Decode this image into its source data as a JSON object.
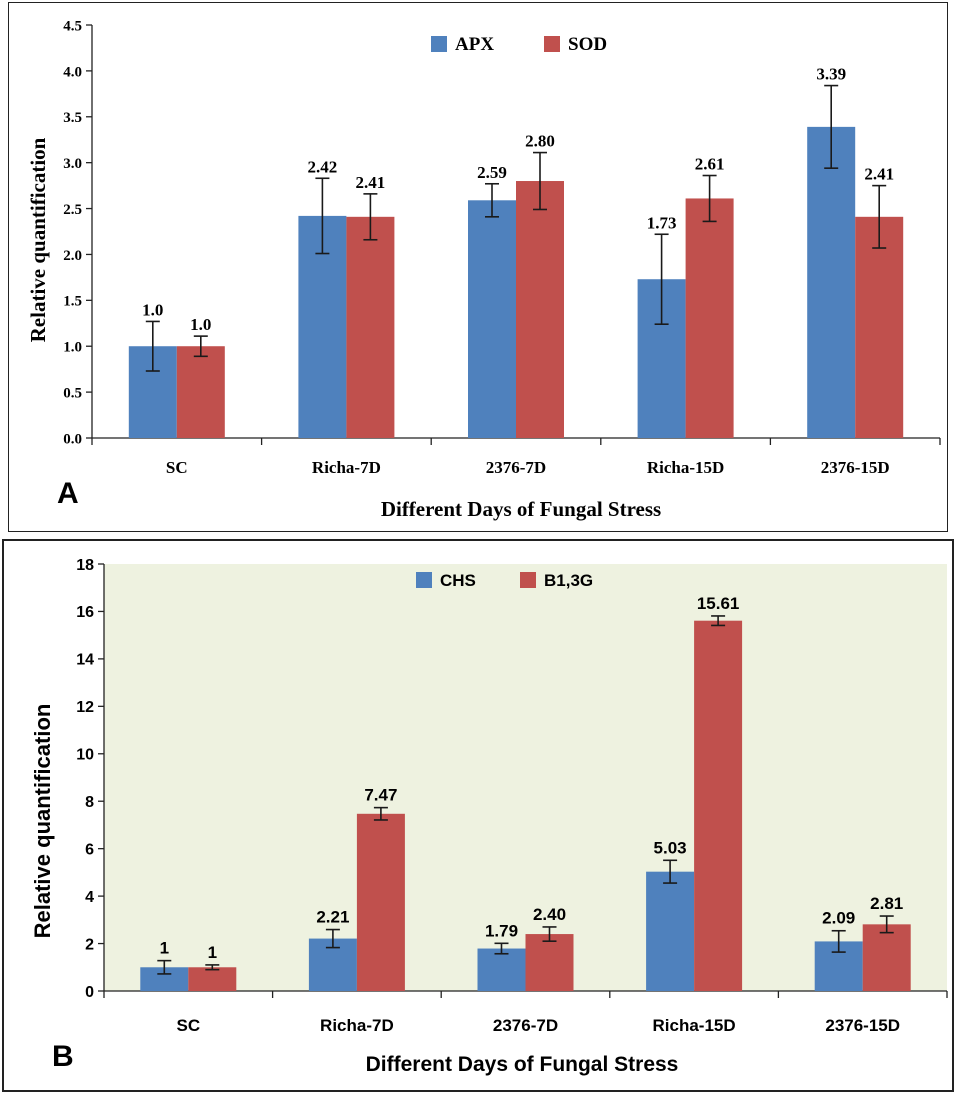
{
  "colors": {
    "series_1": "#4f81bd",
    "series_2": "#c0504d",
    "plot_bg_b": "#eef2e0",
    "error_bar": "#1a1a1a"
  },
  "chart_data": [
    {
      "panel_label": "A",
      "type": "bar",
      "title": "",
      "xlabel": "Different Days of Fungal Stress",
      "ylabel": "Relative quantification",
      "ylim": [
        0,
        4.5
      ],
      "yticks": [
        "0.0",
        "0.5",
        "1.0",
        "1.5",
        "2.0",
        "2.5",
        "3.0",
        "3.5",
        "4.0",
        "4.5"
      ],
      "legend_position": "top-center",
      "categories": [
        "SC",
        "Richa-7D",
        "2376-7D",
        "Richa-15D",
        "2376-15D"
      ],
      "series": [
        {
          "name": "APX",
          "values": [
            1.0,
            2.42,
            2.59,
            1.73,
            3.39
          ],
          "errors": [
            0.27,
            0.41,
            0.18,
            0.49,
            0.45
          ],
          "labels": [
            "1.0",
            "2.42",
            "2.59",
            "1.73",
            "3.39"
          ]
        },
        {
          "name": "SOD",
          "values": [
            1.0,
            2.41,
            2.8,
            2.61,
            2.41
          ],
          "errors": [
            0.11,
            0.25,
            0.31,
            0.25,
            0.34
          ],
          "labels": [
            "1.0",
            "2.41",
            "2.80",
            "2.61",
            "2.41"
          ]
        }
      ]
    },
    {
      "panel_label": "B",
      "type": "bar",
      "title": "",
      "xlabel": "Different Days of Fungal Stress",
      "ylabel": "Relative quantification",
      "ylim": [
        0,
        18
      ],
      "yticks": [
        "0",
        "2",
        "4",
        "6",
        "8",
        "10",
        "12",
        "14",
        "16",
        "18"
      ],
      "legend_position": "top-center",
      "categories": [
        "SC",
        "Richa-7D",
        "2376-7D",
        "Richa-15D",
        "2376-15D"
      ],
      "series": [
        {
          "name": "CHS",
          "values": [
            1,
            2.21,
            1.79,
            5.03,
            2.09
          ],
          "errors": [
            0.28,
            0.38,
            0.22,
            0.48,
            0.45
          ],
          "labels": [
            "1",
            "2.21",
            "1.79",
            "5.03",
            "2.09"
          ]
        },
        {
          "name": "B1,3G",
          "values": [
            1,
            7.47,
            2.4,
            15.61,
            2.81
          ],
          "errors": [
            0.1,
            0.26,
            0.3,
            0.2,
            0.35
          ],
          "labels": [
            "1",
            "7.47",
            "2.40",
            "15.61",
            "2.81"
          ]
        }
      ]
    }
  ]
}
